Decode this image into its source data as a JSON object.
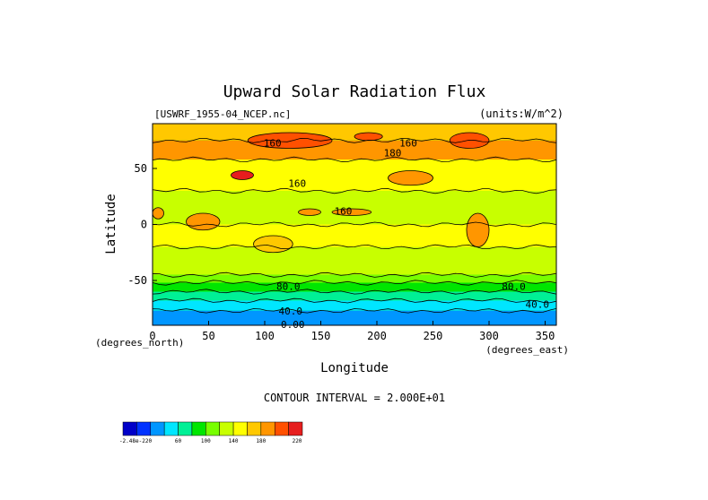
{
  "chart_data": {
    "type": "heatmap",
    "title": "Upward Solar Radiation Flux",
    "dataset_label": "[USWRF_1955-04_NCEP.nc]",
    "units_label": "(units:W/m^2)",
    "xlabel": "Longitude",
    "ylabel": "Latitude",
    "x_units": "(degrees_east)",
    "y_units": "(degrees_north)",
    "xlim": [
      0,
      360
    ],
    "ylim": [
      -90,
      90
    ],
    "x_ticks": [
      0,
      50,
      100,
      150,
      200,
      250,
      300,
      350
    ],
    "y_ticks": [
      50,
      0,
      -50
    ],
    "contour_interval_text": "CONTOUR INTERVAL = 2.000E+01",
    "contour_labels": [
      {
        "text": "160",
        "lon": 107,
        "lat": 73
      },
      {
        "text": "160",
        "lon": 228,
        "lat": 73
      },
      {
        "text": "180",
        "lon": 214,
        "lat": 64
      },
      {
        "text": "160",
        "lon": 129,
        "lat": 37
      },
      {
        "text": "160",
        "lon": 170,
        "lat": 12
      },
      {
        "text": "80.0",
        "lon": 121,
        "lat": -55
      },
      {
        "text": "80.0",
        "lon": 322,
        "lat": -55
      },
      {
        "text": "40.0",
        "lon": 123,
        "lat": -77
      },
      {
        "text": "40.0",
        "lon": 343,
        "lat": -71
      },
      {
        "text": "0.00",
        "lon": 125,
        "lat": -89
      }
    ],
    "lat_bands": [
      {
        "lat": [
          75,
          90
        ],
        "value": 150
      },
      {
        "lat": [
          58,
          75
        ],
        "value": 175
      },
      {
        "lat": [
          30,
          58
        ],
        "value": 130
      },
      {
        "lat": [
          0,
          30
        ],
        "value": 110
      },
      {
        "lat": [
          -20,
          0
        ],
        "value": 130
      },
      {
        "lat": [
          -45,
          -20
        ],
        "value": 100
      },
      {
        "lat": [
          -52,
          -45
        ],
        "value": 90
      },
      {
        "lat": [
          -60,
          -52
        ],
        "value": 70
      },
      {
        "lat": [
          -68,
          -60
        ],
        "value": 50
      },
      {
        "lat": [
          -77,
          -68
        ],
        "value": 30
      },
      {
        "lat": [
          -90,
          -77
        ],
        "value": 10
      }
    ],
    "features": [
      {
        "lon": [
          85,
          160
        ],
        "lat": [
          68,
          82
        ],
        "value": 190
      },
      {
        "lon": [
          180,
          205
        ],
        "lat": [
          75,
          82
        ],
        "value": 195
      },
      {
        "lon": [
          265,
          300
        ],
        "lat": [
          68,
          82
        ],
        "value": 195
      },
      {
        "lon": [
          70,
          90
        ],
        "lat": [
          40,
          48
        ],
        "value": 205
      },
      {
        "lon": [
          130,
          150
        ],
        "lat": [
          8,
          14
        ],
        "value": 175
      },
      {
        "lon": [
          160,
          195
        ],
        "lat": [
          8,
          14
        ],
        "value": 165
      },
      {
        "lon": [
          210,
          250
        ],
        "lat": [
          35,
          48
        ],
        "value": 165
      },
      {
        "lon": [
          280,
          300
        ],
        "lat": [
          -20,
          10
        ],
        "value": 165
      },
      {
        "lon": [
          30,
          60
        ],
        "lat": [
          -5,
          10
        ],
        "value": 170
      },
      {
        "lon": [
          0,
          10
        ],
        "lat": [
          5,
          15
        ],
        "value": 175
      },
      {
        "lon": [
          90,
          125
        ],
        "lat": [
          -25,
          -10
        ],
        "value": 150
      }
    ],
    "colorbar": {
      "levels": [
        -220,
        -200,
        0,
        20,
        40,
        60,
        80,
        100,
        120,
        140,
        160,
        180,
        200,
        220
      ],
      "labels": [
        "-2.48e-220",
        "60",
        "100",
        "140",
        "180",
        "220"
      ],
      "colors": [
        "#0000c8",
        "#0032ff",
        "#0096ff",
        "#00e6ff",
        "#00f096",
        "#00e600",
        "#78ff00",
        "#c8ff00",
        "#ffff00",
        "#ffc800",
        "#ff9600",
        "#ff5000",
        "#e61e1e"
      ]
    }
  }
}
